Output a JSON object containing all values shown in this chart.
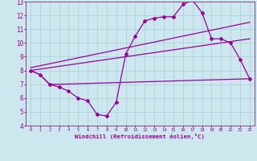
{
  "xlabel": "Windchill (Refroidissement éolien,°C)",
  "bg_color": "#cce8ee",
  "grid_color": "#aaccd8",
  "line_color": "#990099",
  "spine_color": "#884488",
  "xlim": [
    -0.5,
    23.5
  ],
  "ylim": [
    4,
    13
  ],
  "xticks": [
    0,
    1,
    2,
    3,
    4,
    5,
    6,
    7,
    8,
    9,
    10,
    11,
    12,
    13,
    14,
    15,
    16,
    17,
    18,
    19,
    20,
    21,
    22,
    23
  ],
  "yticks": [
    4,
    5,
    6,
    7,
    8,
    9,
    10,
    11,
    12,
    13
  ],
  "series1_x": [
    0,
    1,
    2,
    3,
    4,
    5,
    6,
    7,
    8,
    9,
    10,
    11,
    12,
    13,
    14,
    15,
    16,
    17,
    18,
    19,
    20,
    21,
    22,
    23
  ],
  "series1_y": [
    8.0,
    7.7,
    7.0,
    6.8,
    6.5,
    6.0,
    5.8,
    4.8,
    4.7,
    5.7,
    9.2,
    10.5,
    11.6,
    11.8,
    11.9,
    11.9,
    12.8,
    13.1,
    12.2,
    10.3,
    10.3,
    10.0,
    8.8,
    7.4
  ],
  "series2_x": [
    0,
    1,
    2,
    3,
    23
  ],
  "series2_y": [
    8.0,
    7.7,
    7.0,
    7.0,
    7.4
  ],
  "series3_x": [
    0,
    23
  ],
  "series3_y": [
    8.2,
    11.5
  ],
  "series4_x": [
    0,
    23
  ],
  "series4_y": [
    8.0,
    10.3
  ]
}
